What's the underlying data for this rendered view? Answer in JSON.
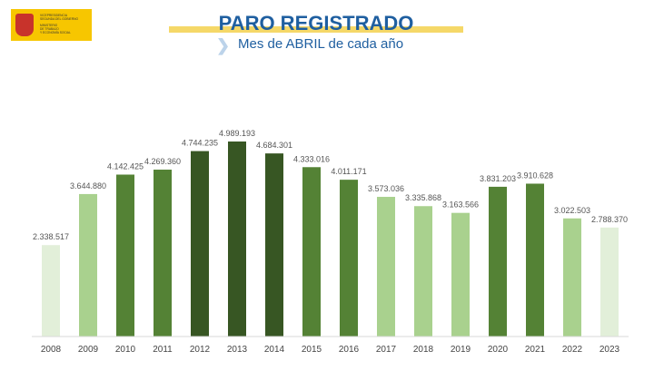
{
  "header": {
    "logo_lines": [
      "VICEPRESIDENCIA",
      "SEGUNDA DEL GOBIERNO",
      "MINISTERIO",
      "DE TRABAJO",
      "Y ECONOMÍA SOCIAL"
    ],
    "title": "PARO REGISTRADO",
    "subtitle": "Mes de ABRIL de cada año"
  },
  "colors": {
    "light": "#e2efd9",
    "medium_light": "#a9d18e",
    "medium": "#548235",
    "dark": "#375623",
    "title": "#1f5fa0"
  },
  "chart_data": {
    "type": "bar",
    "title": "PARO REGISTRADO",
    "subtitle": "Mes de ABRIL de cada año",
    "xlabel": "",
    "ylabel": "",
    "ylim": [
      0,
      5000000
    ],
    "grid": false,
    "categories": [
      "2008",
      "2009",
      "2010",
      "2011",
      "2012",
      "2013",
      "2014",
      "2015",
      "2016",
      "2017",
      "2018",
      "2019",
      "2020",
      "2021",
      "2022",
      "2023"
    ],
    "values": [
      2338517,
      3644880,
      4142425,
      4269360,
      4744235,
      4989193,
      4684301,
      4333016,
      4011171,
      3573036,
      3335868,
      3163566,
      3831203,
      3910628,
      3022503,
      2788370
    ],
    "labels": [
      "2.338.517",
      "3.644.880",
      "4.142.425",
      "4.269.360",
      "4.744.235",
      "4.989.193",
      "4.684.301",
      "4.333.016",
      "4.011.171",
      "3.573.036",
      "3.335.868",
      "3.163.566",
      "3.831.203",
      "3.910.628",
      "3.022.503",
      "2.788.370"
    ],
    "bar_colors": [
      "light",
      "medium_light",
      "medium",
      "medium",
      "dark",
      "dark",
      "dark",
      "medium",
      "medium",
      "medium_light",
      "medium_light",
      "medium_light",
      "medium",
      "medium",
      "medium_light",
      "light"
    ]
  }
}
